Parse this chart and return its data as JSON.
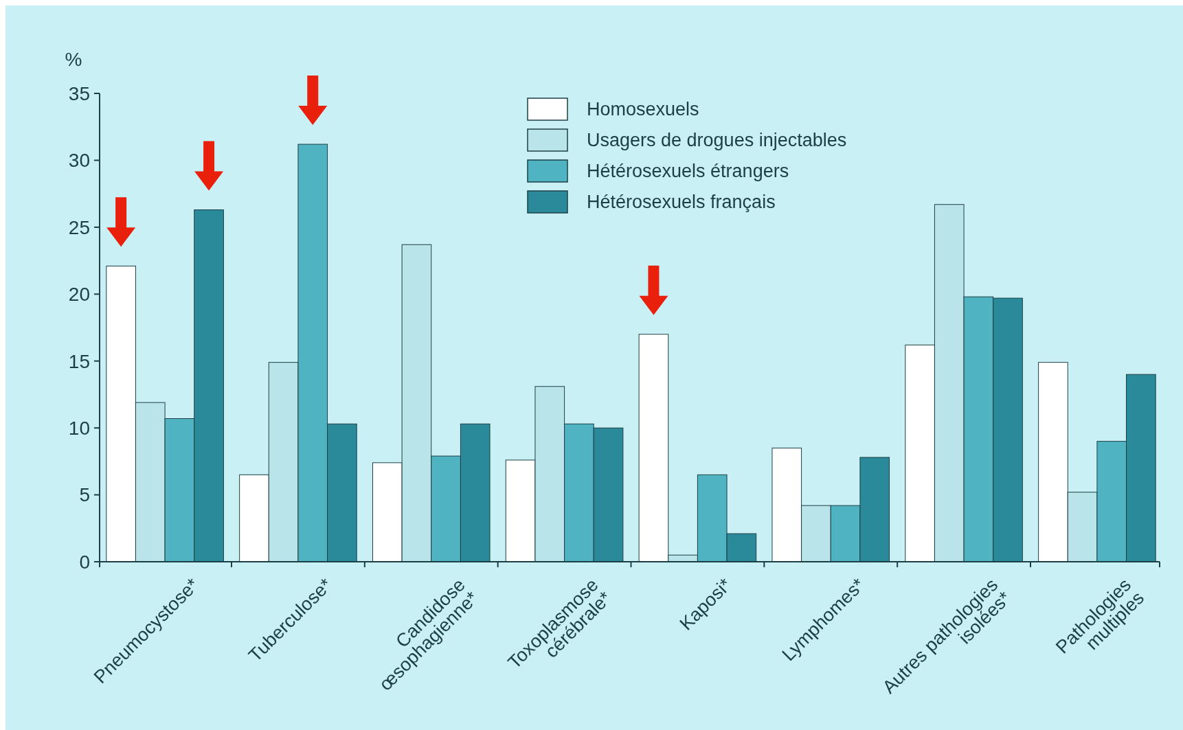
{
  "chart_data": {
    "type": "bar",
    "ylabel": "%",
    "categories": [
      "Pneumocystose*",
      "Tuberculose*",
      "Candidose\nœsophagienne*",
      "Toxoplasmose\ncérébrale*",
      "Kaposi*",
      "Lymphomes*",
      "Autres pathologies\nisolées*",
      "Pathologies\nmultiples"
    ],
    "series": [
      {
        "name": "Homosexuels",
        "color": "#ffffff",
        "values": [
          22.1,
          6.5,
          7.4,
          7.6,
          17,
          8.5,
          16.2,
          14.9
        ]
      },
      {
        "name": "Usagers de drogues injectables",
        "color": "#b8e4ea",
        "values": [
          11.9,
          14.9,
          23.7,
          13.1,
          0.5,
          4.2,
          26.7,
          5.2
        ]
      },
      {
        "name": "Hétérosexuels étrangers",
        "color": "#4fb3c2",
        "values": [
          10.7,
          31.2,
          7.9,
          10.3,
          6.5,
          4.2,
          19.8,
          9
        ]
      },
      {
        "name": "Hétérosexuels français",
        "color": "#2a8a99",
        "values": [
          26.3,
          10.3,
          10.3,
          10,
          2.1,
          7.8,
          19.7,
          14
        ]
      }
    ],
    "ylim": [
      0,
      35
    ],
    "yticks": [
      0,
      5,
      10,
      15,
      20,
      25,
      30,
      35
    ],
    "grid": false,
    "legend": "top"
  }
}
